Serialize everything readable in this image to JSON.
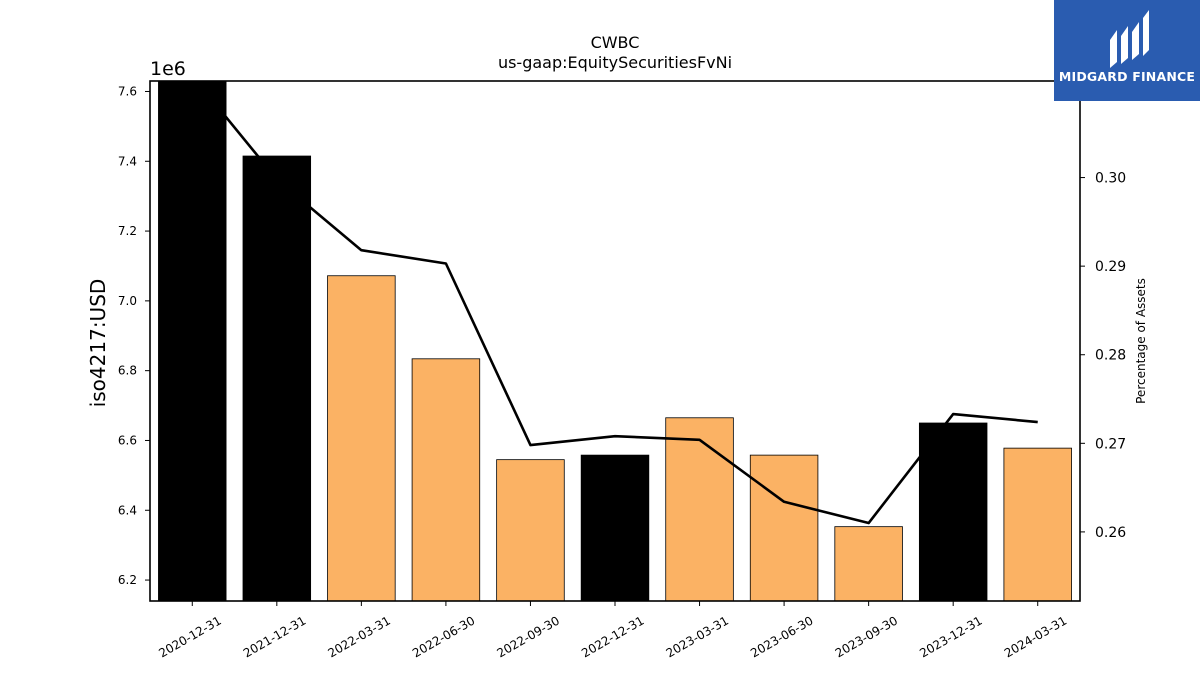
{
  "chart_data": {
    "type": "bar",
    "title": "CWBC",
    "subtitle": "us-gaap:EquitySecuritiesFvNi",
    "ylabel": "iso4217:USD",
    "y_offset_label": "1e6",
    "y2label": "Percentage of Assets",
    "categories": [
      "2020-12-31",
      "2021-12-31",
      "2022-03-31",
      "2022-06-30",
      "2022-09-30",
      "2022-12-31",
      "2023-03-31",
      "2023-06-30",
      "2023-09-30",
      "2023-12-31",
      "2024-03-31"
    ],
    "series": [
      {
        "values": [
          7630000,
          7415000,
          7072000,
          6834000,
          6545000,
          6558000,
          6665000,
          6558000,
          6353000,
          6650000,
          6578000
        ],
        "bar_colors": [
          "#000000",
          "#000000",
          "#fbb264",
          "#fbb264",
          "#fbb264",
          "#000000",
          "#fbb264",
          "#fbb264",
          "#fbb264",
          "#000000",
          "#fbb264"
        ]
      },
      {
        "type": "line",
        "axis": "right",
        "color": "#000000",
        "values": [
          0.3115,
          0.2998,
          0.2918,
          0.2903,
          0.2698,
          0.2708,
          0.2704,
          0.2634,
          0.261,
          0.2733,
          0.2724
        ]
      }
    ],
    "ylim": [
      6.14,
      7.63
    ],
    "yticks": [
      "6.2",
      "6.4",
      "6.6",
      "6.8",
      "7.0",
      "7.2",
      "7.4",
      "7.6"
    ],
    "y2lim": [
      0.2522,
      0.3109
    ],
    "y2ticks": [
      "0.26",
      "0.27",
      "0.28",
      "0.29",
      "0.30"
    ],
    "grid": false
  },
  "logo": {
    "text": "MIDGARD FINANCE",
    "color": "#2a5cb0"
  }
}
